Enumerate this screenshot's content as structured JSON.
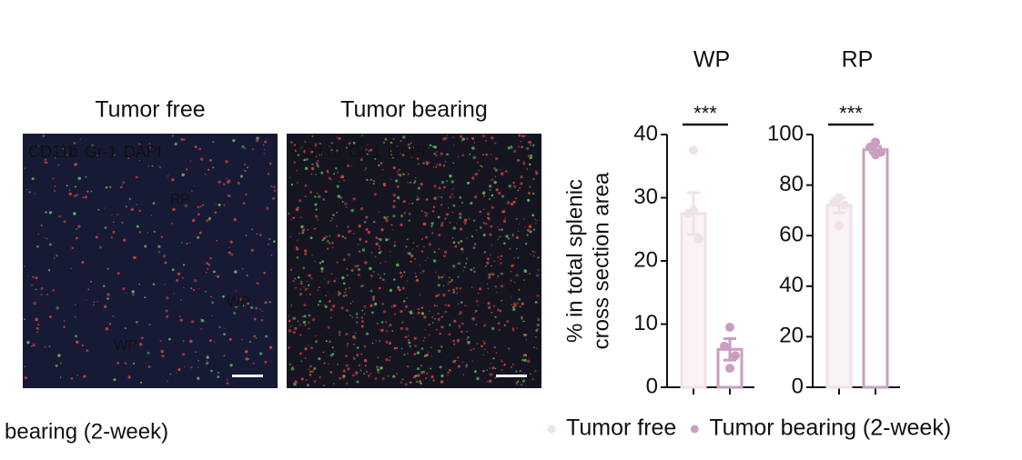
{
  "images": [
    {
      "title": "Tumor free",
      "channels": [
        {
          "label": "CD11b",
          "color": "#d9453a"
        },
        {
          "label": "Gr-1",
          "color": "#5fc35a"
        },
        {
          "label": "DAPI",
          "color": "#3f5fb8"
        }
      ],
      "regions": [
        "RP",
        "WP",
        "WP"
      ]
    },
    {
      "title": "Tumor bearing",
      "channels": [
        {
          "label": "CD11b",
          "color": "#d9453a"
        },
        {
          "label": "Gr-1",
          "color": "#5fc35a"
        },
        {
          "label": "DAPI",
          "color": "#3f5fb8"
        }
      ],
      "regions": [
        "RP",
        "WP",
        "WP"
      ]
    }
  ],
  "caption": "bearing (2-week)",
  "legend": [
    "Tumor free",
    "Tumor bearing (2-week)"
  ],
  "chart_data": [
    {
      "type": "bar",
      "title": "WP",
      "ylabel": [
        "% in total splenic",
        "cross section area"
      ],
      "categories": [
        null,
        null
      ],
      "values": [
        27.5,
        6
      ],
      "errors": [
        3.3,
        1.7
      ],
      "points": [
        [
          37.5,
          27.5,
          23.5,
          28
        ],
        [
          9.5,
          6.5,
          5,
          3
        ]
      ],
      "colors": [
        "#f0e1e9",
        "#c99fc1"
      ],
      "ylim": [
        0,
        40
      ],
      "yticks": [
        0,
        10,
        20,
        30,
        40
      ],
      "annotation": "***"
    },
    {
      "type": "bar",
      "title": "RP",
      "categories": [
        null,
        null
      ],
      "values": [
        72,
        94
      ],
      "errors": [
        3,
        1.3
      ],
      "points": [
        [
          75,
          73,
          72,
          64
        ],
        [
          97,
          95,
          93,
          92
        ]
      ],
      "colors": [
        "#f0e1e9",
        "#c99fc1"
      ],
      "ylim": [
        0,
        100
      ],
      "yticks": [
        0,
        20,
        40,
        60,
        80,
        100
      ],
      "annotation": "***"
    }
  ]
}
